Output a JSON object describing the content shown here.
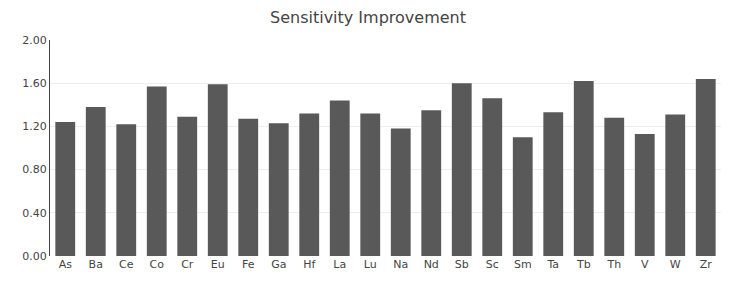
{
  "chart_data": {
    "type": "bar",
    "title": "Sensitivity Improvement",
    "categories": [
      "As",
      "Ba",
      "Ce",
      "Co",
      "Cr",
      "Eu",
      "Fe",
      "Ga",
      "Hf",
      "La",
      "Lu",
      "Na",
      "Nd",
      "Sb",
      "Sc",
      "Sm",
      "Ta",
      "Tb",
      "Th",
      "V",
      "W",
      "Zr"
    ],
    "values": [
      1.24,
      1.38,
      1.22,
      1.57,
      1.29,
      1.59,
      1.27,
      1.23,
      1.32,
      1.44,
      1.32,
      1.18,
      1.35,
      1.6,
      1.46,
      1.1,
      1.33,
      1.62,
      1.28,
      1.13,
      1.31,
      1.64
    ],
    "color": "#595959",
    "ylim": [
      0.0,
      2.0
    ],
    "yticks": [
      {
        "value": 0.0,
        "label": "0.00"
      },
      {
        "value": 0.4,
        "label": "0.40"
      },
      {
        "value": 0.8,
        "label": "0.80"
      },
      {
        "value": 1.2,
        "label": "1.20"
      },
      {
        "value": 1.6,
        "label": "1.60"
      },
      {
        "value": 2.0,
        "label": "2.00"
      }
    ],
    "grid": true
  }
}
